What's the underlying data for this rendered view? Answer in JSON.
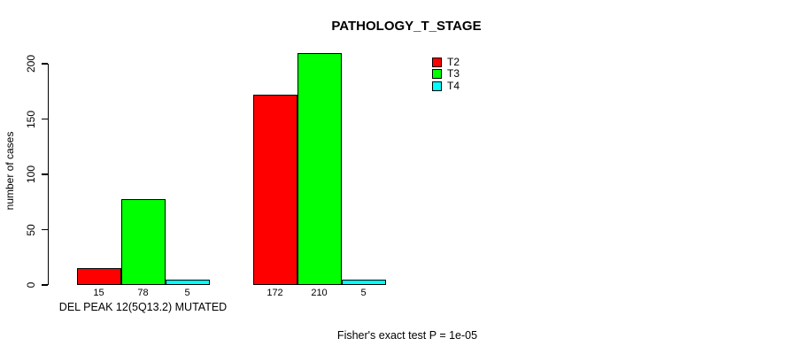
{
  "chart_data": {
    "type": "bar",
    "title": "PATHOLOGY_T_STAGE",
    "ylabel": "number of cases",
    "ylim": [
      0,
      200
    ],
    "yticks": [
      0,
      50,
      100,
      150,
      200
    ],
    "grid": false,
    "legend_position": "top-right",
    "series": [
      {
        "name": "T2",
        "color": "#ff0000"
      },
      {
        "name": "T3",
        "color": "#00ff00"
      },
      {
        "name": "T4",
        "color": "#00ffff"
      }
    ],
    "groups": [
      {
        "label": "DEL PEAK 12(5Q13.2) MUTATED",
        "values": [
          15,
          78,
          5
        ]
      },
      {
        "label": "",
        "values": [
          172,
          210,
          5
        ]
      }
    ],
    "annotation": "Fisher's exact test P = 1e-05"
  }
}
